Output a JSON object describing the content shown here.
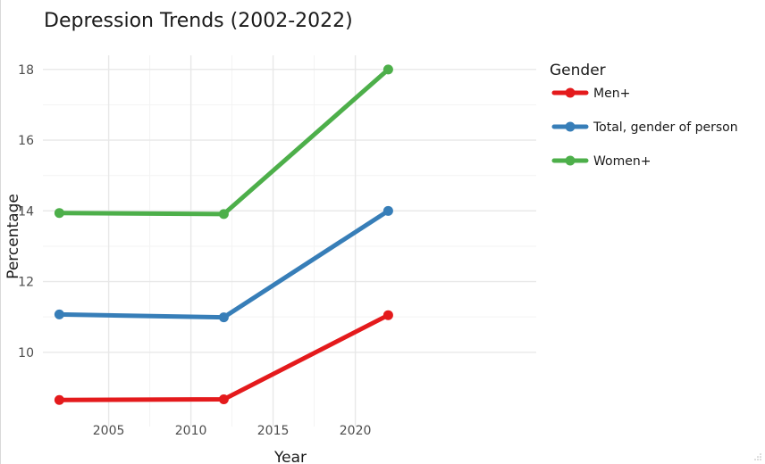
{
  "chart_data": {
    "type": "line",
    "title": "Depression Trends (2002-2022)",
    "xlabel": "Year",
    "ylabel": "Percentage",
    "x": [
      2002,
      2012,
      2022
    ],
    "xlim": [
      2001,
      2031
    ],
    "ylim": [
      7.9,
      18.4
    ],
    "xticks": [
      2005,
      2010,
      2015,
      2020
    ],
    "yticks": [
      10,
      12,
      14,
      16,
      18
    ],
    "grid": true,
    "legend": {
      "title": "Gender",
      "position": "right"
    },
    "series": [
      {
        "name": "Men+",
        "color": "#e41a1c",
        "values": [
          8.65,
          8.67,
          11.05
        ]
      },
      {
        "name": "Total, gender of person",
        "color": "#377eb8",
        "values": [
          11.07,
          10.99,
          14.0
        ]
      },
      {
        "name": "Women+",
        "color": "#4daf4a",
        "values": [
          13.94,
          13.91,
          18.0
        ]
      }
    ]
  }
}
